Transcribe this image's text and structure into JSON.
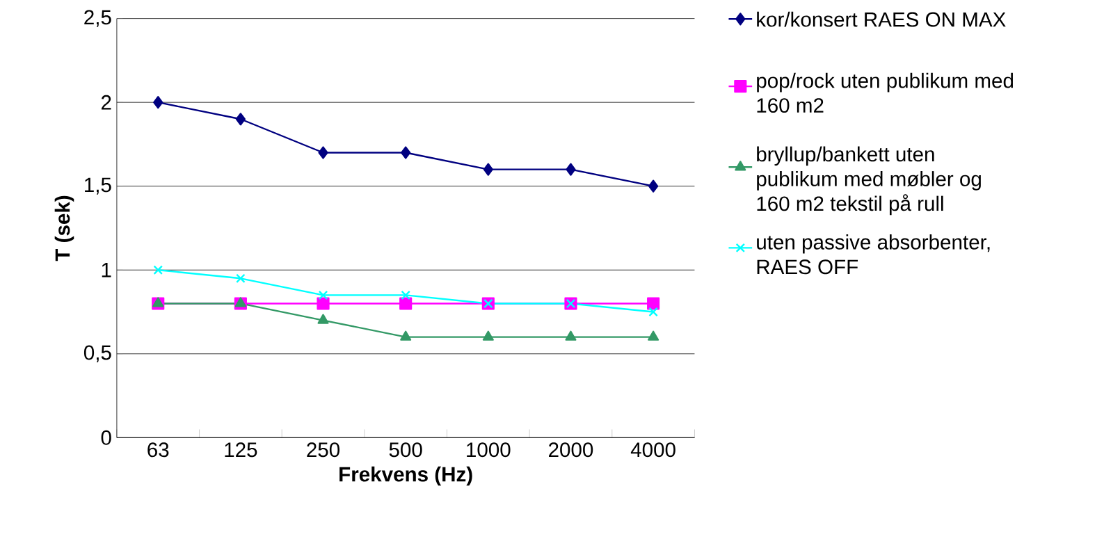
{
  "chart_data": {
    "type": "line",
    "xlabel": "Frekvens (Hz)",
    "ylabel": "T (sek)",
    "categories": [
      "63",
      "125",
      "250",
      "500",
      "1000",
      "2000",
      "4000"
    ],
    "series": [
      {
        "name": "kor/konsert RAES ON MAX",
        "color": "#000080",
        "marker": "diamond",
        "values": [
          2,
          1.9,
          1.7,
          1.7,
          1.6,
          1.6,
          1.5
        ]
      },
      {
        "name": "pop/rock uten publikum med 160 m2",
        "color": "#ff00ff",
        "marker": "square",
        "values": [
          0.8,
          0.8,
          0.8,
          0.8,
          0.8,
          0.8,
          0.8
        ]
      },
      {
        "name": "bryllup/bankett uten publikum med møbler og 160 m2 tekstil på rull",
        "color": "#339966",
        "marker": "triangle",
        "values": [
          0.8,
          0.8,
          0.7,
          0.6,
          0.6,
          0.6,
          0.6
        ]
      },
      {
        "name": "uten passive absorbenter, RAES OFF",
        "color": "#00ffff",
        "marker": "cross",
        "values": [
          1.0,
          0.95,
          0.85,
          0.85,
          0.8,
          0.8,
          0.75
        ]
      }
    ],
    "ylim": [
      0,
      2.5
    ],
    "yticks": [
      0,
      {
        "value": 0.5,
        "label": "0,5"
      },
      1,
      {
        "value": 1.5,
        "label": "1,5"
      },
      2,
      {
        "value": 2.5,
        "label": "2,5"
      }
    ],
    "grid": "y",
    "legend": "right"
  }
}
